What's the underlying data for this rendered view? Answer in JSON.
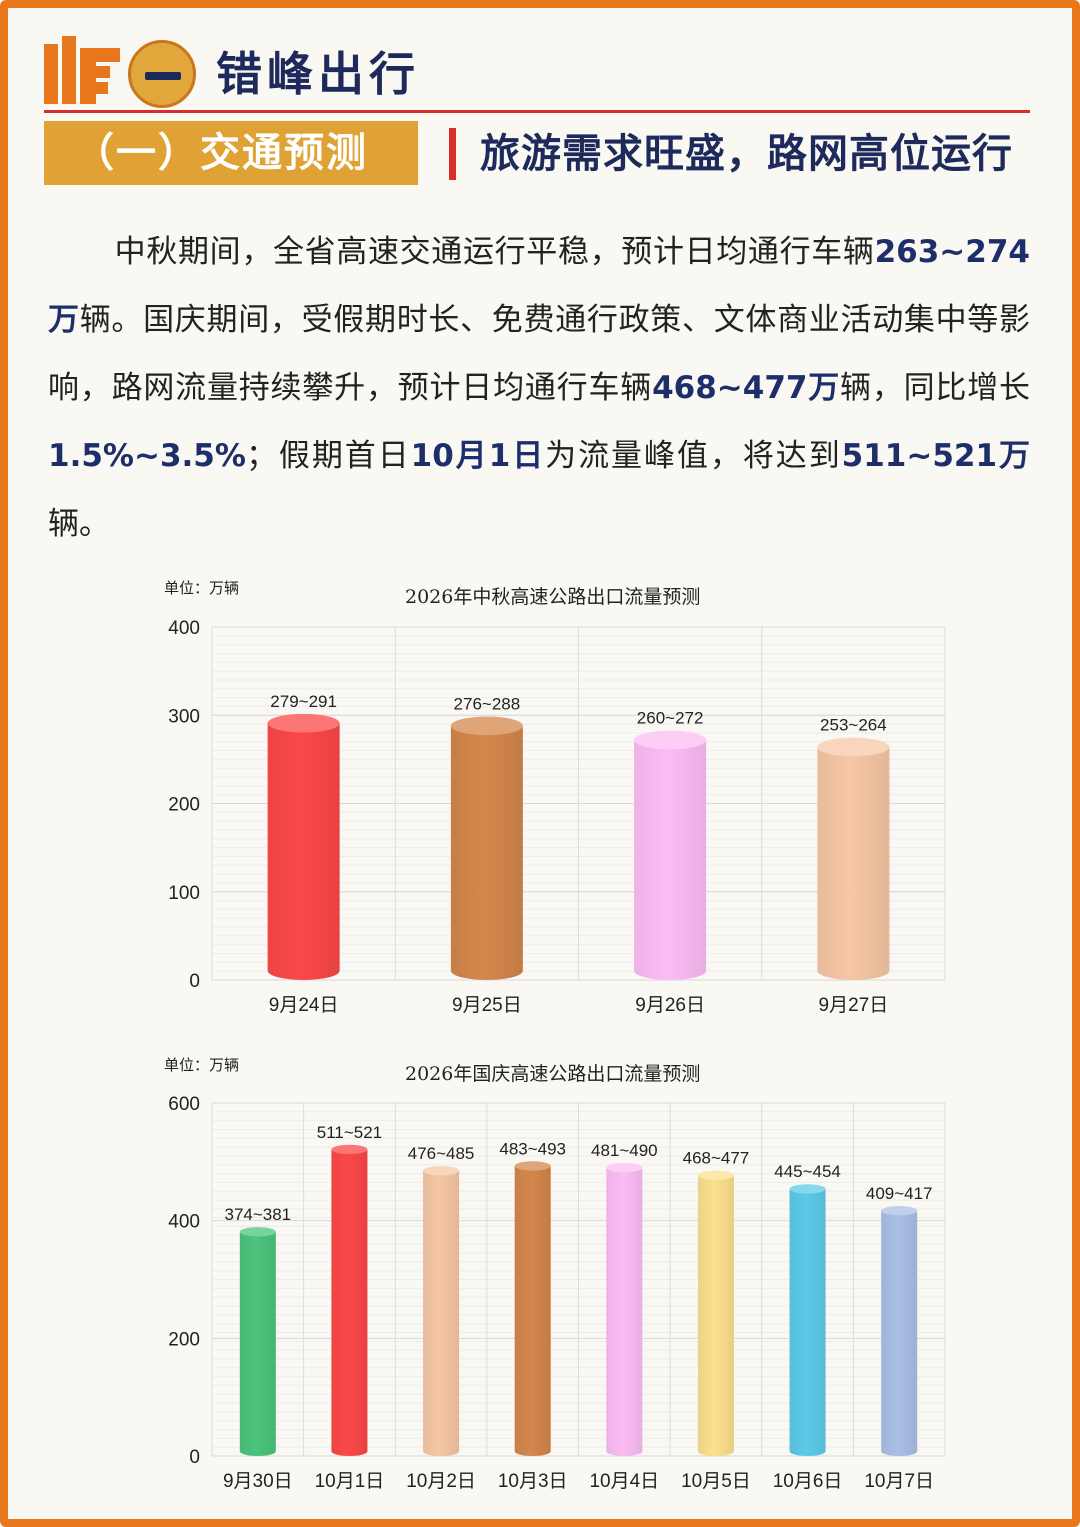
{
  "header": {
    "title": "错峰出行",
    "section_label": "（一）交通预测",
    "section_subtitle": "旅游需求旺盛，路网高位运行"
  },
  "paragraph": {
    "s1": "中秋期间，全省高速交通运行平稳，预计日均通行车辆",
    "h1": "263~274万",
    "s2": "辆。国庆期间，受假期时长、免费通行政策、文体商业活动集中等影响，路网流量持续攀升，预计日均通行车辆",
    "h2": "468~477万",
    "s3": "辆，同比增长",
    "h3": "1.5%~3.5%",
    "s4": "；假期首日",
    "h4": "10月1日",
    "s5": "为流量峰值，将达到",
    "h5": "511~521万",
    "s6": "辆。"
  },
  "chart_data": [
    {
      "type": "bar",
      "title": "2026年中秋高速公路出口流量预测",
      "unit_label": "单位：万辆",
      "categories": [
        "9月24日",
        "9月25日",
        "9月26日",
        "9月27日"
      ],
      "values": [
        291,
        288,
        272,
        264
      ],
      "value_labels": [
        "279~291",
        "276~288",
        "260~272",
        "253~264"
      ],
      "colors": [
        "#fb4848",
        "#d4874c",
        "#fcbcf6",
        "#f6c7a5"
      ],
      "ylim": [
        0,
        400
      ],
      "yticks": [
        "0",
        "100",
        "200",
        "300",
        "400"
      ],
      "grid": true
    },
    {
      "type": "bar",
      "title": "2026年国庆高速公路出口流量预测",
      "unit_label": "单位：万辆",
      "categories": [
        "9月30日",
        "10月1日",
        "10月2日",
        "10月3日",
        "10月4日",
        "10月5日",
        "10月6日",
        "10月7日"
      ],
      "values": [
        381,
        521,
        485,
        493,
        490,
        477,
        454,
        417
      ],
      "value_labels": [
        "374~381",
        "511~521",
        "476~485",
        "483~493",
        "481~490",
        "468~477",
        "445~454",
        "409~417"
      ],
      "colors": [
        "#4cc47c",
        "#fb4848",
        "#f6c7a5",
        "#d4874c",
        "#fcbcf6",
        "#fbe08e",
        "#5ccbe8",
        "#a9c0e6"
      ],
      "ylim": [
        0,
        600
      ],
      "yticks": [
        "0",
        "200",
        "400",
        "600"
      ],
      "grid": true
    }
  ]
}
